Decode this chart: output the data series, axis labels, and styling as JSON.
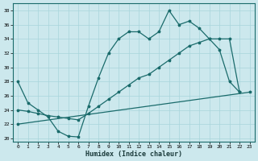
{
  "xlabel": "Humidex (Indice chaleur)",
  "bg_color": "#cce8ed",
  "grid_color": "#a8d5db",
  "line_color": "#1a6b6b",
  "xlim": [
    -0.5,
    23.5
  ],
  "ylim": [
    19.5,
    39
  ],
  "yticks": [
    20,
    22,
    24,
    26,
    28,
    30,
    32,
    34,
    36,
    38
  ],
  "xticks": [
    0,
    1,
    2,
    3,
    4,
    5,
    6,
    7,
    8,
    9,
    10,
    11,
    12,
    13,
    14,
    15,
    16,
    17,
    18,
    19,
    20,
    21,
    22,
    23
  ],
  "line1_x": [
    0,
    1,
    2,
    3,
    4,
    5,
    6,
    7,
    8,
    9,
    10,
    11,
    12,
    13,
    14,
    15,
    16,
    17,
    18,
    19,
    20,
    21,
    22
  ],
  "line1_y": [
    28,
    25,
    24,
    23,
    21,
    20.3,
    20.2,
    24.5,
    28.5,
    32,
    34,
    35,
    35,
    34,
    35,
    38,
    36,
    36.5,
    35.5,
    34,
    32.5,
    28,
    26.5
  ],
  "line2_x": [
    0,
    1,
    2,
    3,
    4,
    5,
    6,
    7,
    8,
    9,
    10,
    11,
    12,
    13,
    14,
    15,
    16,
    17,
    18,
    19,
    20,
    21,
    22
  ],
  "line2_y": [
    24,
    23.8,
    23.5,
    23.2,
    23.0,
    22.8,
    22.6,
    23.5,
    24.5,
    25.5,
    26.5,
    27.5,
    28.5,
    29,
    30,
    31,
    32,
    33,
    33.5,
    34,
    34,
    34,
    26.5
  ],
  "line3_x": [
    0,
    23
  ],
  "line3_y": [
    22,
    26.5
  ]
}
